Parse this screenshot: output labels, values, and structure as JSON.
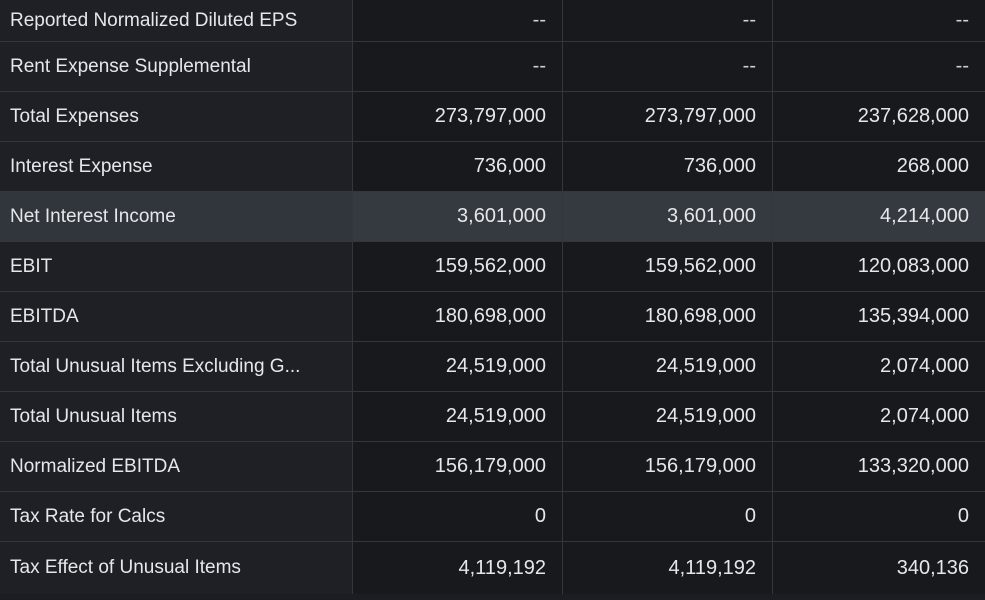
{
  "rows": [
    {
      "label": "Reported Normalized Diluted EPS",
      "values": [
        "--",
        "--",
        "--"
      ]
    },
    {
      "label": "Rent Expense Supplemental",
      "values": [
        "--",
        "--",
        "--"
      ]
    },
    {
      "label": "Total Expenses",
      "values": [
        "273,797,000",
        "273,797,000",
        "237,628,000"
      ]
    },
    {
      "label": "Interest Expense",
      "values": [
        "736,000",
        "736,000",
        "268,000"
      ]
    },
    {
      "label": "Net Interest Income",
      "values": [
        "3,601,000",
        "3,601,000",
        "4,214,000"
      ],
      "highlighted": true
    },
    {
      "label": "EBIT",
      "values": [
        "159,562,000",
        "159,562,000",
        "120,083,000"
      ]
    },
    {
      "label": "EBITDA",
      "values": [
        "180,698,000",
        "180,698,000",
        "135,394,000"
      ]
    },
    {
      "label": "Total Unusual Items Excluding G...",
      "values": [
        "24,519,000",
        "24,519,000",
        "2,074,000"
      ]
    },
    {
      "label": "Total Unusual Items",
      "values": [
        "24,519,000",
        "24,519,000",
        "2,074,000"
      ]
    },
    {
      "label": "Normalized EBITDA",
      "values": [
        "156,179,000",
        "156,179,000",
        "133,320,000"
      ]
    },
    {
      "label": "Tax Rate for Calcs",
      "values": [
        "0",
        "0",
        "0"
      ]
    },
    {
      "label": "Tax Effect of Unusual Items",
      "values": [
        "4,119,192",
        "4,119,192",
        "340,136"
      ]
    }
  ],
  "colors": {
    "background": "#17191d",
    "label_background": "#1e2025",
    "highlight_background": "#343a3f",
    "text": "#e6e7ea",
    "grid": "#33363c"
  }
}
